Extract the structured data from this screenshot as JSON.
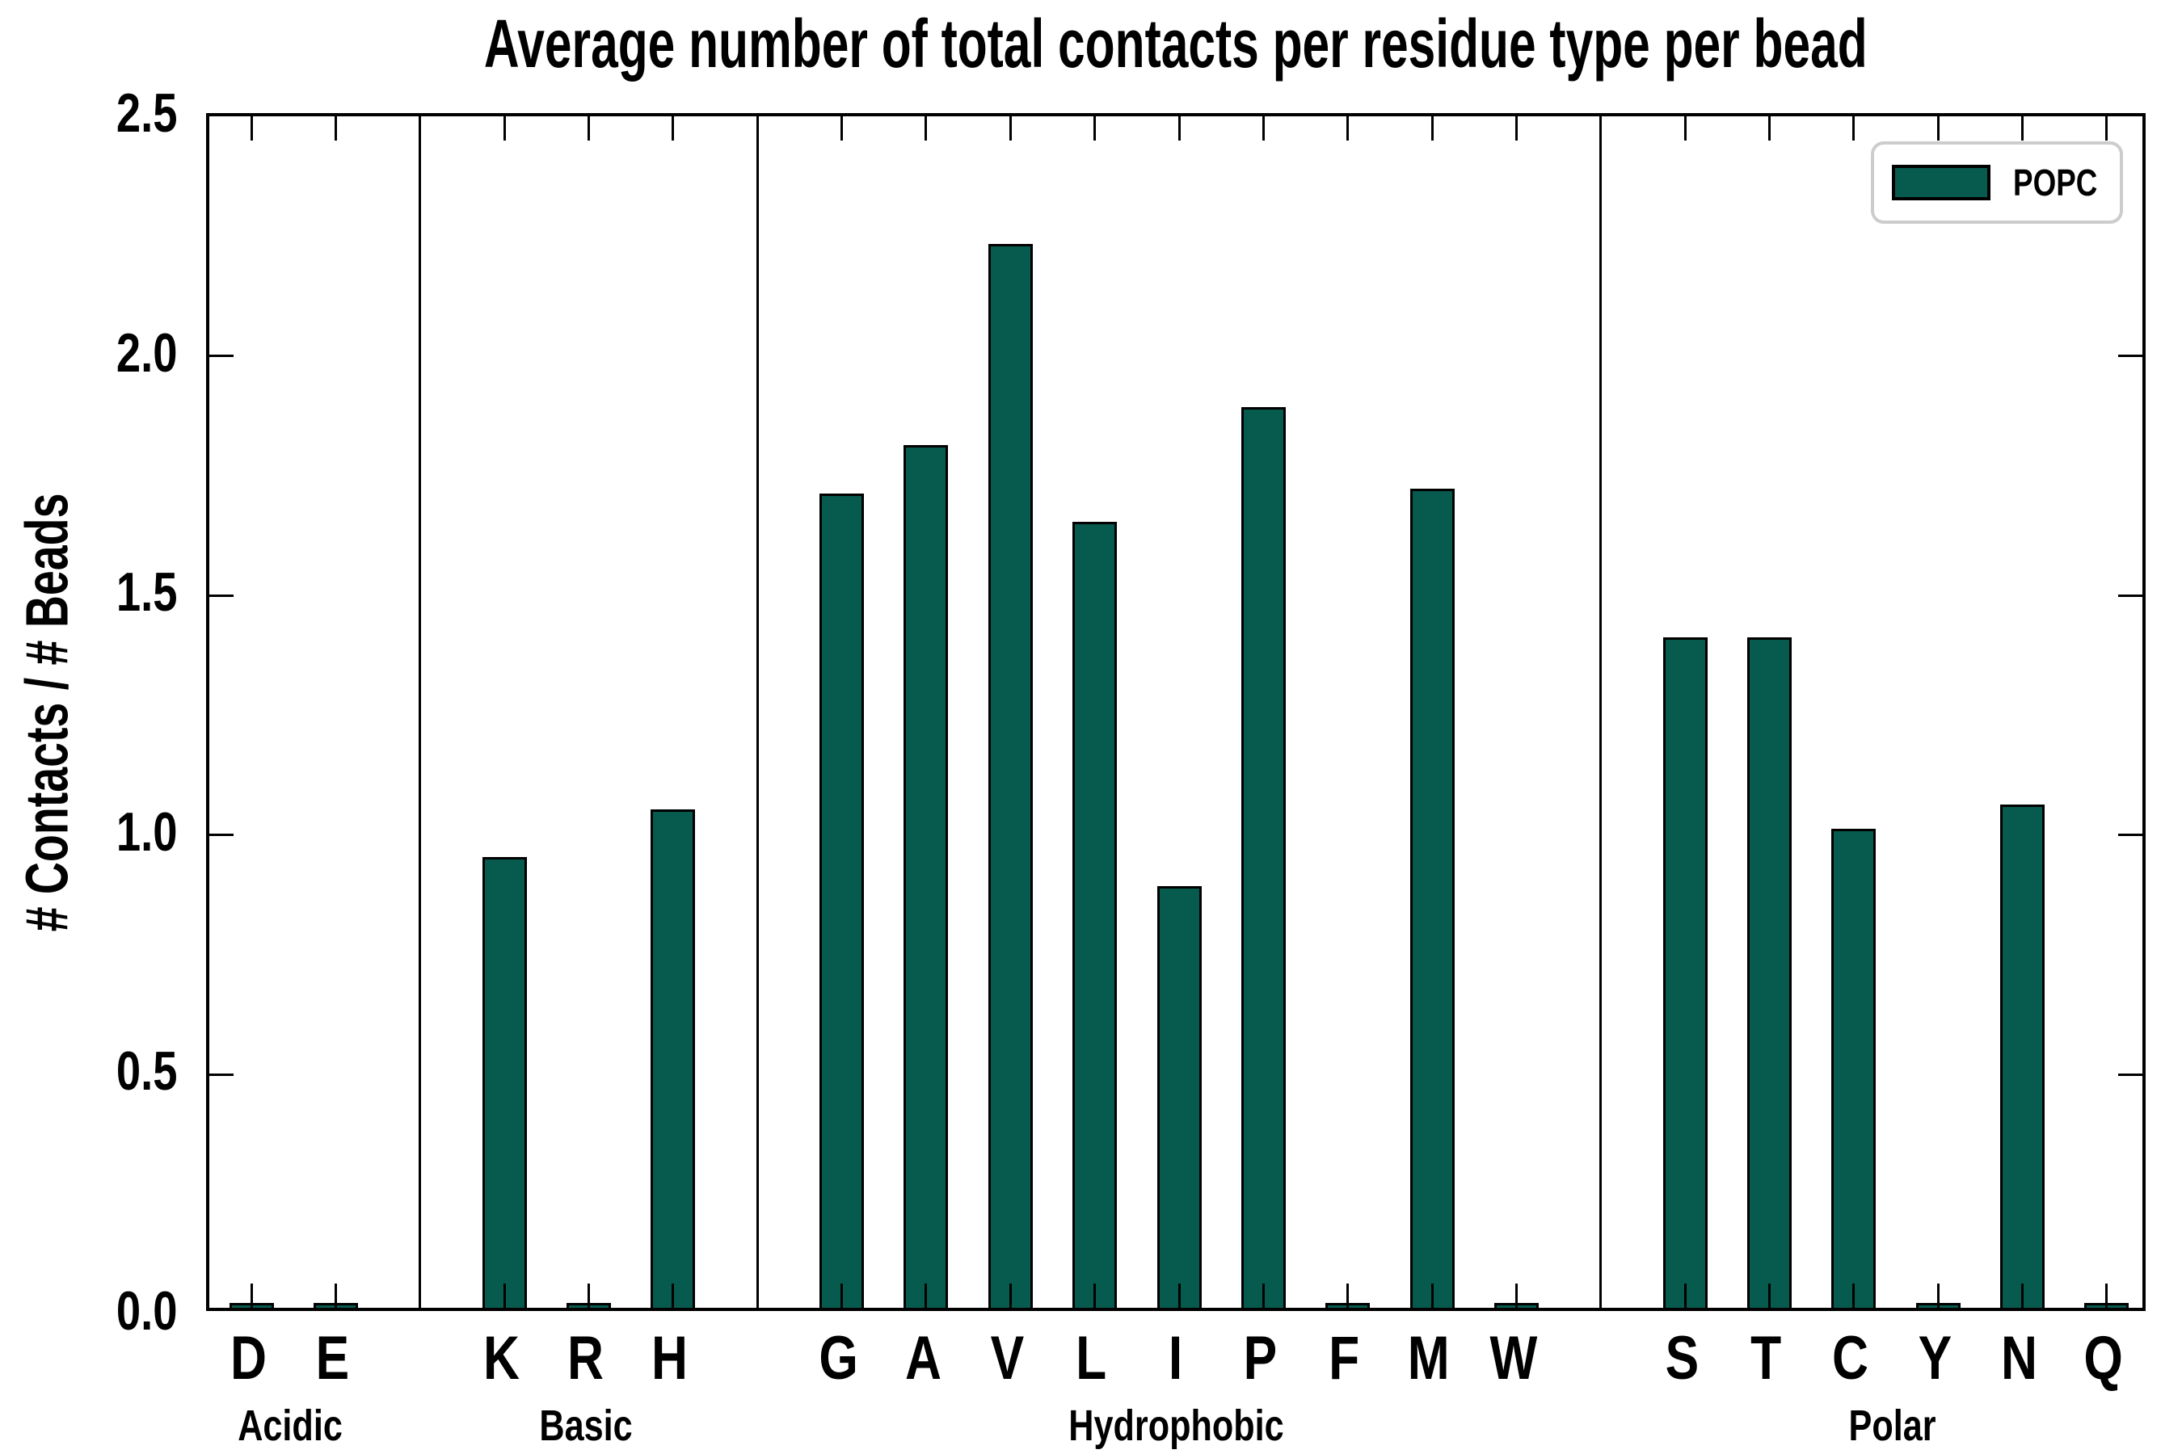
{
  "title": "Average number of total contacts per residue type per bead",
  "legend": {
    "label": "POPC",
    "swatch_color": "#075a4e"
  },
  "chart_data": {
    "type": "bar",
    "title": "Average number of total contacts per residue type per bead",
    "xlabel": "",
    "ylabel": "# Contacts / # Beads",
    "ylim": [
      0,
      2.5
    ],
    "ytick_labels": [
      "0.0",
      "0.5",
      "1.0",
      "1.5",
      "2.0",
      "2.5"
    ],
    "grid": false,
    "legend_position": "upper right",
    "bar_color": "#075a4e",
    "bar_edge_color": "#000000",
    "series_name": "POPC",
    "categories": [
      "D",
      "E",
      "K",
      "R",
      "H",
      "G",
      "A",
      "V",
      "L",
      "I",
      "P",
      "F",
      "M",
      "W",
      "S",
      "T",
      "C",
      "Y",
      "N",
      "Q"
    ],
    "values": [
      0.005,
      0.005,
      0.94,
      0.005,
      1.04,
      1.7,
      1.8,
      2.22,
      1.64,
      0.88,
      1.88,
      0.005,
      1.71,
      0.005,
      1.4,
      1.4,
      1.0,
      0.005,
      1.05,
      0.005
    ],
    "groups": [
      {
        "label": "Acidic",
        "categories": [
          "D",
          "E"
        ]
      },
      {
        "label": "Basic",
        "categories": [
          "K",
          "R",
          "H"
        ]
      },
      {
        "label": "Hydrophobic",
        "categories": [
          "G",
          "A",
          "V",
          "L",
          "I",
          "P",
          "F",
          "M",
          "W"
        ]
      },
      {
        "label": "Polar",
        "categories": [
          "S",
          "T",
          "C",
          "Y",
          "N",
          "Q"
        ]
      }
    ]
  }
}
